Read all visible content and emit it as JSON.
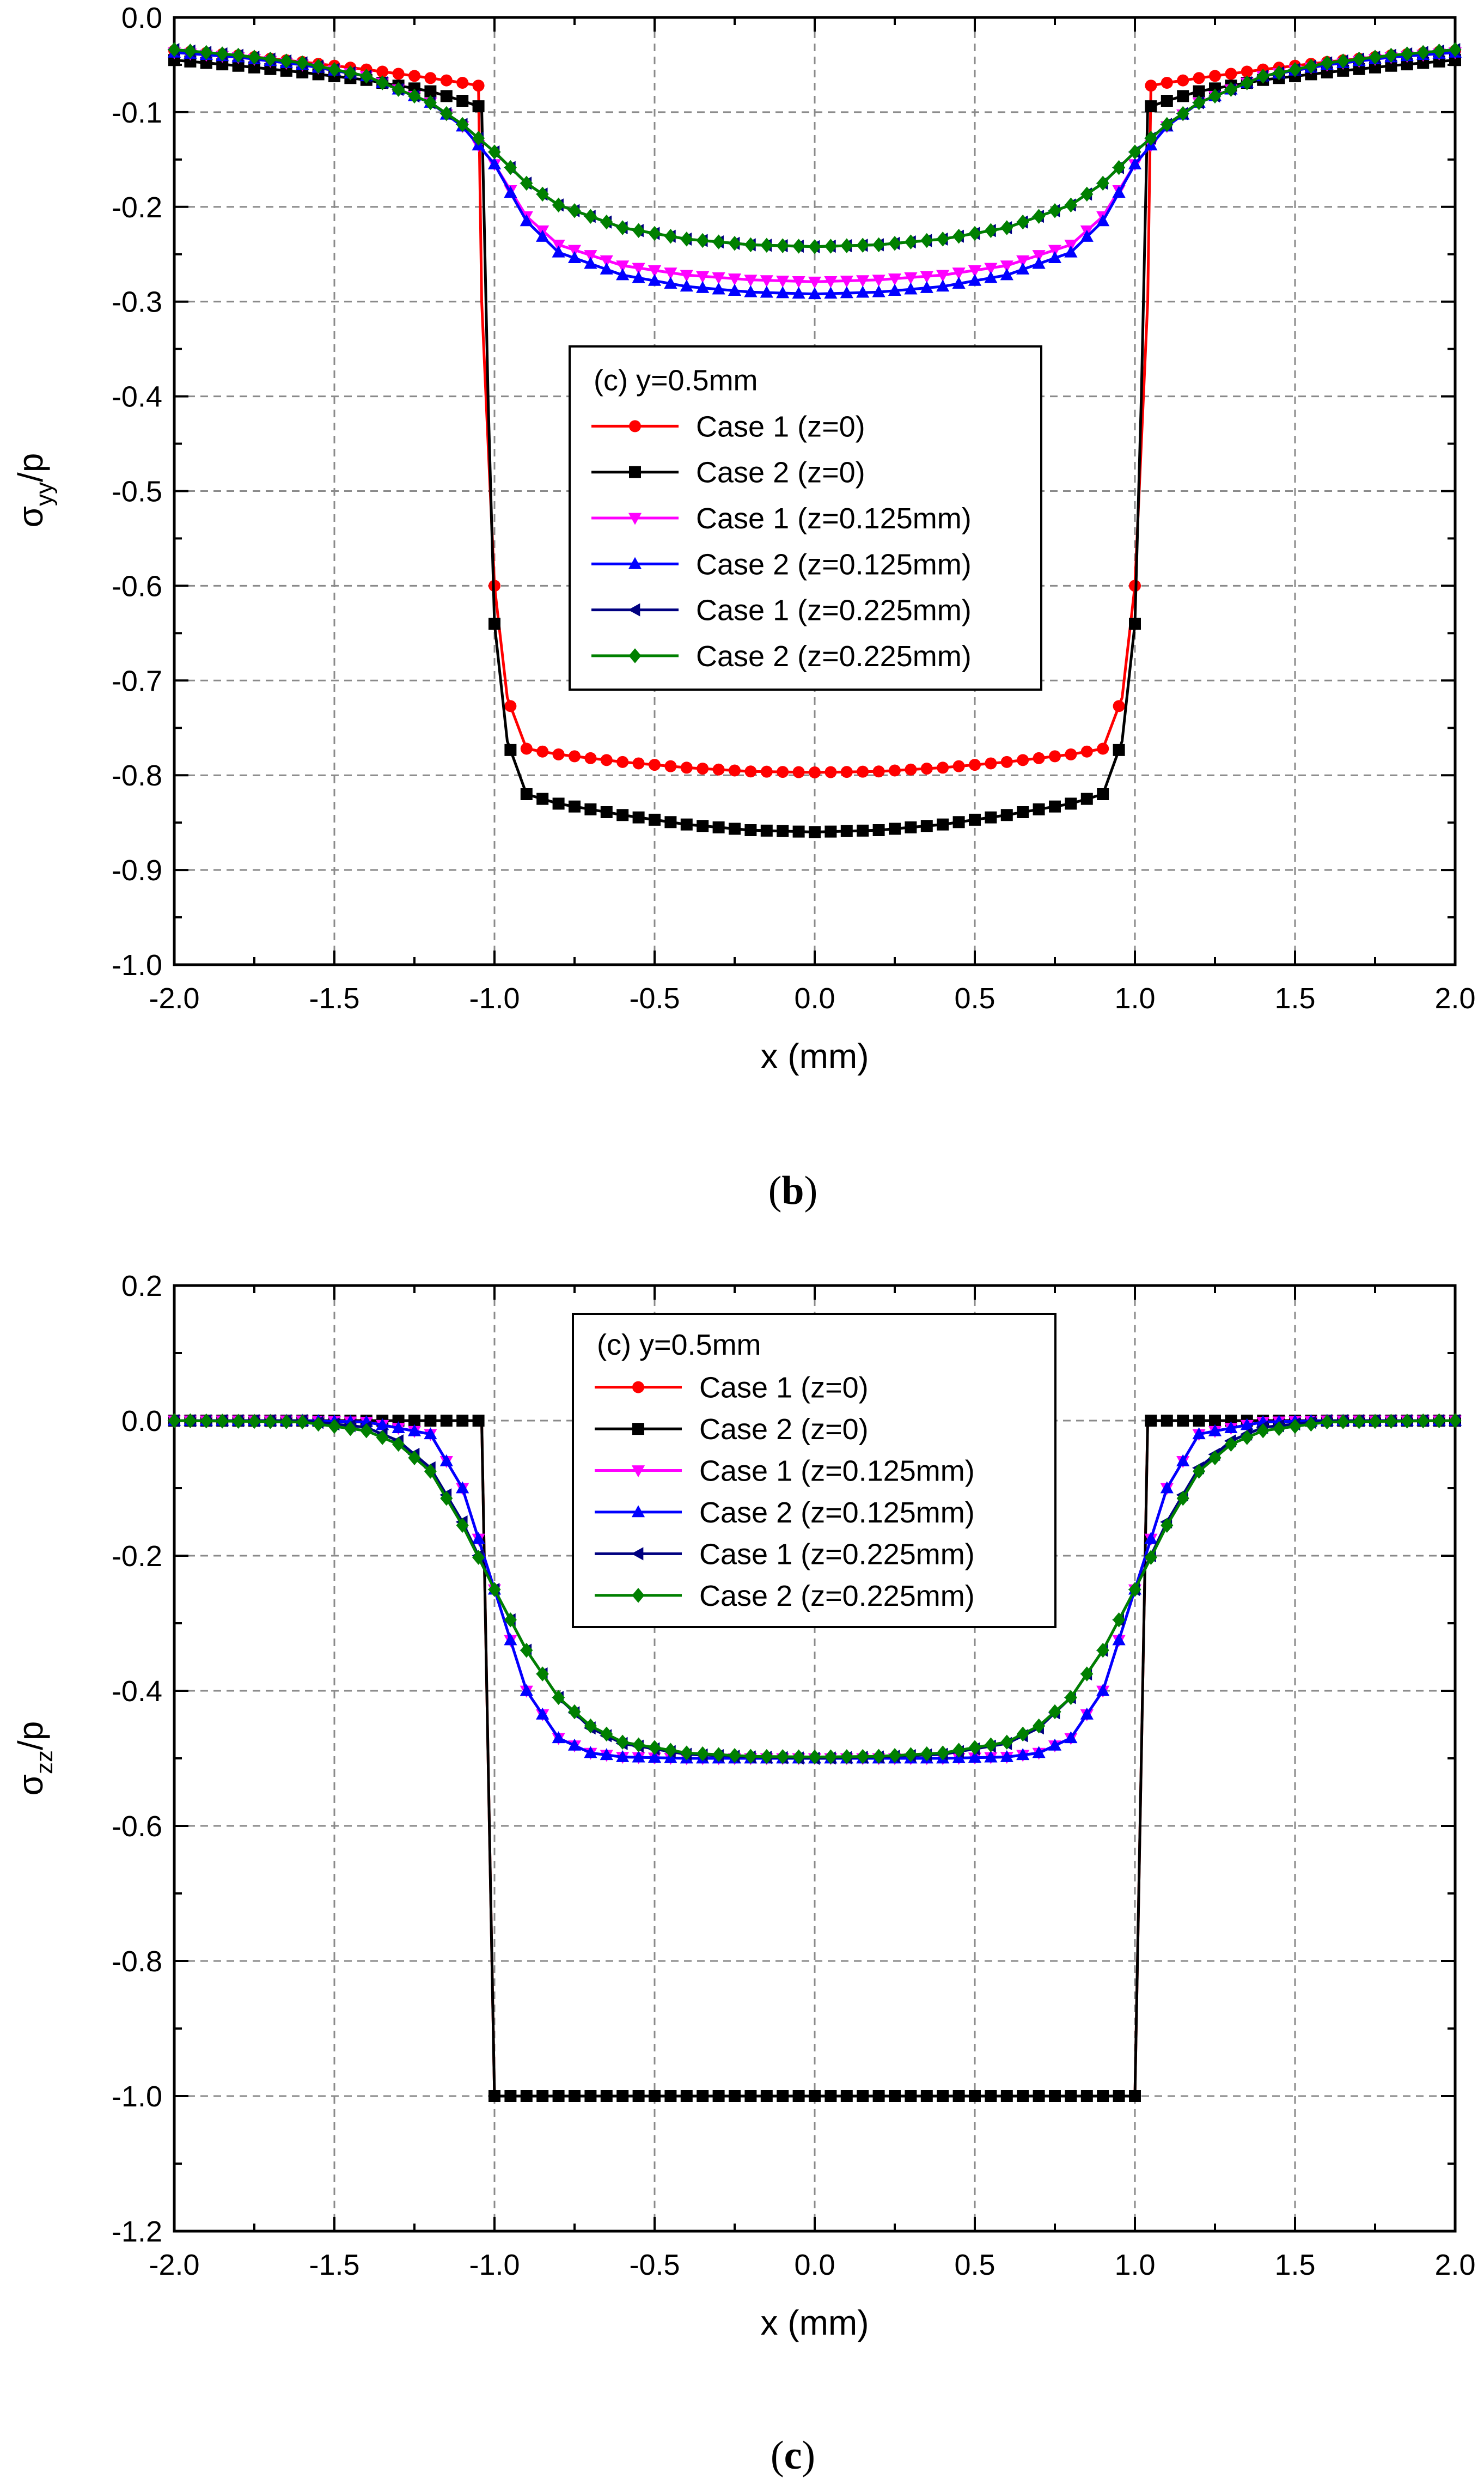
{
  "chart_data": [
    {
      "type": "line",
      "panel_label": "(b)",
      "xlabel": "x (mm)",
      "ylabel": "σyy/p",
      "xlim": [
        -2.0,
        2.0
      ],
      "ylim": [
        -1.0,
        0.0
      ],
      "xticks": [
        -2.0,
        -1.5,
        -1.0,
        -0.5,
        0.0,
        0.5,
        1.0,
        1.5,
        2.0
      ],
      "yticks": [
        0.0,
        -0.1,
        -0.2,
        -0.3,
        -0.4,
        -0.5,
        -0.6,
        -0.7,
        -0.8,
        -0.9,
        -1.0
      ],
      "xtick_labels": [
        "-2.0",
        "-1.5",
        "-1.0",
        "-0.5",
        "0.0",
        "0.5",
        "1.0",
        "1.5",
        "2.0"
      ],
      "ytick_labels": [
        "0.0",
        "-0.1",
        "-0.2",
        "-0.3",
        "-0.4",
        "-0.5",
        "-0.6",
        "-0.7",
        "-0.8",
        "-0.9",
        "-1.0"
      ],
      "grid": true,
      "legend_title": "(c) y=0.5mm",
      "legend_position": "center",
      "series": [
        {
          "name": "Case 1 (z=0)",
          "color": "#ff0000",
          "marker": "circle",
          "x": [
            -2.0,
            -1.8,
            -1.6,
            -1.4,
            -1.2,
            -1.1,
            -1.05,
            -1.04,
            -1.0,
            -0.96,
            -0.9,
            -0.8,
            -0.6,
            -0.4,
            -0.2,
            0.0,
            0.2,
            0.4,
            0.6,
            0.8,
            0.9,
            0.96,
            1.0,
            1.04,
            1.05,
            1.1,
            1.2,
            1.4,
            1.6,
            1.8,
            2.0
          ],
          "y": [
            -0.035,
            -0.04,
            -0.047,
            -0.055,
            -0.064,
            -0.069,
            -0.072,
            -0.3,
            -0.6,
            -0.718,
            -0.772,
            -0.778,
            -0.786,
            -0.792,
            -0.796,
            -0.797,
            -0.796,
            -0.792,
            -0.786,
            -0.778,
            -0.772,
            -0.718,
            -0.6,
            -0.3,
            -0.072,
            -0.069,
            -0.064,
            -0.055,
            -0.047,
            -0.04,
            -0.035
          ]
        },
        {
          "name": "Case 2 (z=0)",
          "color": "#000000",
          "marker": "square",
          "x": [
            -2.0,
            -1.8,
            -1.6,
            -1.4,
            -1.2,
            -1.1,
            -1.04,
            -1.02,
            -1.0,
            -0.96,
            -0.9,
            -0.8,
            -0.6,
            -0.4,
            -0.2,
            0.0,
            0.2,
            0.4,
            0.6,
            0.8,
            0.9,
            0.96,
            1.0,
            1.02,
            1.04,
            1.1,
            1.2,
            1.4,
            1.6,
            1.8,
            2.0
          ],
          "y": [
            -0.045,
            -0.051,
            -0.058,
            -0.066,
            -0.078,
            -0.088,
            -0.095,
            -0.4,
            -0.64,
            -0.764,
            -0.82,
            -0.83,
            -0.842,
            -0.852,
            -0.858,
            -0.86,
            -0.858,
            -0.852,
            -0.842,
            -0.83,
            -0.82,
            -0.764,
            -0.64,
            -0.4,
            -0.095,
            -0.088,
            -0.078,
            -0.066,
            -0.058,
            -0.051,
            -0.045
          ]
        },
        {
          "name": "Case 1 (z=0.125mm)",
          "color": "#ff00ff",
          "marker": "triangle-down",
          "x": [
            -2.0,
            -1.8,
            -1.6,
            -1.4,
            -1.2,
            -1.1,
            -1.0,
            -0.9,
            -0.8,
            -0.6,
            -0.4,
            -0.2,
            0.0,
            0.2,
            0.4,
            0.6,
            0.8,
            0.9,
            1.0,
            1.1,
            1.2,
            1.4,
            1.6,
            1.8,
            2.0
          ],
          "y": [
            -0.037,
            -0.042,
            -0.05,
            -0.062,
            -0.09,
            -0.115,
            -0.155,
            -0.21,
            -0.24,
            -0.262,
            -0.272,
            -0.277,
            -0.279,
            -0.277,
            -0.272,
            -0.262,
            -0.24,
            -0.21,
            -0.155,
            -0.115,
            -0.09,
            -0.062,
            -0.05,
            -0.042,
            -0.037
          ]
        },
        {
          "name": "Case 2 (z=0.125mm)",
          "color": "#0000ff",
          "marker": "triangle-up",
          "x": [
            -2.0,
            -1.8,
            -1.6,
            -1.4,
            -1.2,
            -1.1,
            -1.0,
            -0.9,
            -0.8,
            -0.6,
            -0.4,
            -0.2,
            0.0,
            0.2,
            0.4,
            0.6,
            0.8,
            0.9,
            1.0,
            1.1,
            1.2,
            1.4,
            1.6,
            1.8,
            2.0
          ],
          "y": [
            -0.037,
            -0.042,
            -0.05,
            -0.062,
            -0.09,
            -0.115,
            -0.155,
            -0.215,
            -0.248,
            -0.272,
            -0.284,
            -0.29,
            -0.292,
            -0.29,
            -0.284,
            -0.272,
            -0.248,
            -0.215,
            -0.155,
            -0.115,
            -0.09,
            -0.062,
            -0.05,
            -0.042,
            -0.037
          ]
        },
        {
          "name": "Case 1 (z=0.225mm)",
          "color": "#000080",
          "marker": "triangle-left",
          "x": [
            -2.0,
            -1.8,
            -1.6,
            -1.4,
            -1.2,
            -1.1,
            -1.0,
            -0.9,
            -0.8,
            -0.6,
            -0.4,
            -0.2,
            0.0,
            0.2,
            0.4,
            0.6,
            0.8,
            0.9,
            1.0,
            1.1,
            1.2,
            1.4,
            1.6,
            1.8,
            2.0
          ],
          "y": [
            -0.034,
            -0.04,
            -0.048,
            -0.062,
            -0.09,
            -0.113,
            -0.142,
            -0.175,
            -0.198,
            -0.222,
            -0.234,
            -0.24,
            -0.242,
            -0.24,
            -0.234,
            -0.222,
            -0.198,
            -0.175,
            -0.142,
            -0.113,
            -0.09,
            -0.062,
            -0.048,
            -0.04,
            -0.034
          ]
        },
        {
          "name": "Case 2 (z=0.225mm)",
          "color": "#008000",
          "marker": "diamond",
          "x": [
            -2.0,
            -1.8,
            -1.6,
            -1.4,
            -1.2,
            -1.1,
            -1.0,
            -0.9,
            -0.8,
            -0.6,
            -0.4,
            -0.2,
            0.0,
            0.2,
            0.4,
            0.6,
            0.8,
            0.9,
            1.0,
            1.1,
            1.2,
            1.4,
            1.6,
            1.8,
            2.0
          ],
          "y": [
            -0.034,
            -0.04,
            -0.048,
            -0.062,
            -0.09,
            -0.113,
            -0.142,
            -0.175,
            -0.198,
            -0.222,
            -0.234,
            -0.24,
            -0.242,
            -0.24,
            -0.234,
            -0.222,
            -0.198,
            -0.175,
            -0.142,
            -0.113,
            -0.09,
            -0.062,
            -0.048,
            -0.04,
            -0.034
          ]
        }
      ]
    },
    {
      "type": "line",
      "panel_label": "(c)",
      "xlabel": "x (mm)",
      "ylabel": "σzz/p",
      "xlim": [
        -2.0,
        2.0
      ],
      "ylim": [
        -1.2,
        0.2
      ],
      "xticks": [
        -2.0,
        -1.5,
        -1.0,
        -0.5,
        0.0,
        0.5,
        1.0,
        1.5,
        2.0
      ],
      "yticks": [
        0.2,
        0.0,
        -0.2,
        -0.4,
        -0.6,
        -0.8,
        -1.0,
        -1.2
      ],
      "xtick_labels": [
        "-2.0",
        "-1.5",
        "-1.0",
        "-0.5",
        "0.0",
        "0.5",
        "1.0",
        "1.5",
        "2.0"
      ],
      "ytick_labels": [
        "0.2",
        "0.0",
        "-0.2",
        "-0.4",
        "-0.6",
        "-0.8",
        "-1.0",
        "-1.2"
      ],
      "grid": true,
      "legend_title": "(c) y=0.5mm",
      "legend_position": "top-center",
      "series": [
        {
          "name": "Case 1 (z=0)",
          "color": "#ff0000",
          "marker": "circle",
          "x": [
            -2.0,
            -1.5,
            -1.04,
            -1.0,
            -0.5,
            0.0,
            0.5,
            1.0,
            1.04,
            1.5,
            2.0
          ],
          "y": [
            0.0,
            0.0,
            0.0,
            -1.0,
            -1.0,
            -1.0,
            -1.0,
            -1.0,
            0.0,
            0.0,
            0.0
          ]
        },
        {
          "name": "Case 2 (z=0)",
          "color": "#000000",
          "marker": "square",
          "x": [
            -2.0,
            -1.5,
            -1.04,
            -1.0,
            -0.5,
            0.0,
            0.5,
            1.0,
            1.04,
            1.5,
            2.0
          ],
          "y": [
            0.0,
            0.0,
            0.0,
            -1.0,
            -1.0,
            -1.0,
            -1.0,
            -1.0,
            0.0,
            0.0,
            0.0
          ]
        },
        {
          "name": "Case 1 (z=0.125mm)",
          "color": "#ff00ff",
          "marker": "triangle-down",
          "x": [
            -2.0,
            -1.6,
            -1.4,
            -1.2,
            -1.1,
            -1.0,
            -0.9,
            -0.8,
            -0.7,
            -0.6,
            -0.4,
            -0.2,
            0.0,
            0.2,
            0.4,
            0.6,
            0.7,
            0.8,
            0.9,
            1.0,
            1.1,
            1.2,
            1.4,
            1.6,
            2.0
          ],
          "y": [
            0.0,
            0.0,
            -0.002,
            -0.02,
            -0.1,
            -0.25,
            -0.4,
            -0.47,
            -0.492,
            -0.498,
            -0.5,
            -0.5,
            -0.5,
            -0.5,
            -0.5,
            -0.498,
            -0.492,
            -0.47,
            -0.4,
            -0.25,
            -0.1,
            -0.02,
            -0.002,
            0.0,
            0.0
          ]
        },
        {
          "name": "Case 2 (z=0.125mm)",
          "color": "#0000ff",
          "marker": "triangle-up",
          "x": [
            -2.0,
            -1.6,
            -1.4,
            -1.2,
            -1.1,
            -1.0,
            -0.9,
            -0.8,
            -0.7,
            -0.6,
            -0.4,
            -0.2,
            0.0,
            0.2,
            0.4,
            0.6,
            0.7,
            0.8,
            0.9,
            1.0,
            1.1,
            1.2,
            1.4,
            1.6,
            2.0
          ],
          "y": [
            0.0,
            0.0,
            -0.002,
            -0.02,
            -0.1,
            -0.25,
            -0.4,
            -0.47,
            -0.492,
            -0.498,
            -0.5,
            -0.5,
            -0.5,
            -0.5,
            -0.5,
            -0.498,
            -0.492,
            -0.47,
            -0.4,
            -0.25,
            -0.1,
            -0.02,
            -0.002,
            0.0,
            0.0
          ]
        },
        {
          "name": "Case 1 (z=0.225mm)",
          "color": "#000080",
          "marker": "triangle-left",
          "x": [
            -2.0,
            -1.6,
            -1.4,
            -1.3,
            -1.2,
            -1.1,
            -1.0,
            -0.9,
            -0.8,
            -0.7,
            -0.6,
            -0.4,
            -0.2,
            0.0,
            0.2,
            0.4,
            0.6,
            0.7,
            0.8,
            0.9,
            1.0,
            1.1,
            1.2,
            1.3,
            1.4,
            1.6,
            2.0
          ],
          "y": [
            0.0,
            0.0,
            -0.01,
            -0.03,
            -0.07,
            -0.15,
            -0.25,
            -0.34,
            -0.41,
            -0.455,
            -0.478,
            -0.494,
            -0.498,
            -0.5,
            -0.498,
            -0.494,
            -0.478,
            -0.455,
            -0.41,
            -0.34,
            -0.25,
            -0.15,
            -0.07,
            -0.03,
            -0.01,
            0.0,
            0.0
          ]
        },
        {
          "name": "Case 2 (z=0.225mm)",
          "color": "#008000",
          "marker": "diamond",
          "x": [
            -2.0,
            -1.6,
            -1.4,
            -1.3,
            -1.2,
            -1.1,
            -1.0,
            -0.9,
            -0.8,
            -0.7,
            -0.6,
            -0.4,
            -0.2,
            0.0,
            0.2,
            0.4,
            0.6,
            0.7,
            0.8,
            0.9,
            1.0,
            1.1,
            1.2,
            1.3,
            1.4,
            1.6,
            2.0
          ],
          "y": [
            0.0,
            -0.002,
            -0.015,
            -0.035,
            -0.075,
            -0.155,
            -0.25,
            -0.34,
            -0.41,
            -0.452,
            -0.476,
            -0.492,
            -0.497,
            -0.498,
            -0.497,
            -0.492,
            -0.476,
            -0.452,
            -0.41,
            -0.34,
            -0.25,
            -0.155,
            -0.075,
            -0.035,
            -0.015,
            -0.002,
            0.0
          ]
        }
      ]
    }
  ]
}
